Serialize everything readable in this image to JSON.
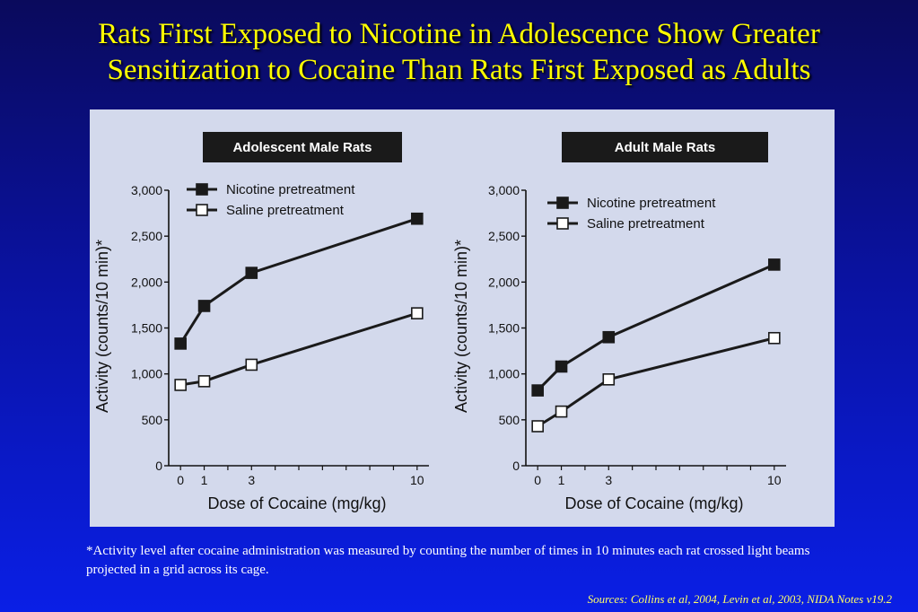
{
  "slide": {
    "title_line1": "Rats First Exposed to Nicotine in Adolescence Show Greater",
    "title_line2": "Sensitization to Cocaine Than Rats First Exposed as Adults",
    "footnote": "*Activity level after cocaine administration was measured by counting the number of times in 10 minutes each rat crossed light beams projected in a grid across its cage.",
    "sources": "Sources: Collins et al, 2004, Levin et al, 2003, NIDA Notes v19.2"
  },
  "colors": {
    "title": "#ffff00",
    "panel": "#d3d9ec",
    "filled_marker": "#1a1a1a",
    "open_marker": "#ffffff"
  },
  "chart_data": [
    {
      "type": "line",
      "title": "Adolescent Male Rats",
      "xlabel": "Dose of Cocaine (mg/kg)",
      "ylabel": "Activity (counts/10 min)*",
      "x": [
        0,
        1,
        3,
        10
      ],
      "x_ticks": [
        "0",
        "1",
        "3",
        "10"
      ],
      "y_ticks": [
        "0",
        "500",
        "1,000",
        "1,500",
        "2,000",
        "2,500",
        "3,000"
      ],
      "ylim": [
        0,
        3000
      ],
      "xlim": [
        -0.5,
        10.5
      ],
      "legend_position": "top-left",
      "series": [
        {
          "name": "Nicotine pretreatment",
          "marker": "filled-square",
          "values": [
            1330,
            1740,
            2100,
            2690
          ]
        },
        {
          "name": "Saline pretreatment",
          "marker": "open-square",
          "values": [
            880,
            920,
            1100,
            1660
          ]
        }
      ]
    },
    {
      "type": "line",
      "title": "Adult Male Rats",
      "xlabel": "Dose of Cocaine (mg/kg)",
      "ylabel": "Activity (counts/10 min)*",
      "x": [
        0,
        1,
        3,
        10
      ],
      "x_ticks": [
        "0",
        "1",
        "3",
        "10"
      ],
      "y_ticks": [
        "0",
        "500",
        "1,000",
        "1,500",
        "2,000",
        "2,500",
        "3,000"
      ],
      "ylim": [
        0,
        3000
      ],
      "xlim": [
        -0.5,
        10.5
      ],
      "legend_position": "top-left",
      "series": [
        {
          "name": "Nicotine pretreatment",
          "marker": "filled-square",
          "values": [
            820,
            1080,
            1400,
            2190
          ]
        },
        {
          "name": "Saline pretreatment",
          "marker": "open-square",
          "values": [
            430,
            590,
            940,
            1390
          ]
        }
      ]
    }
  ]
}
